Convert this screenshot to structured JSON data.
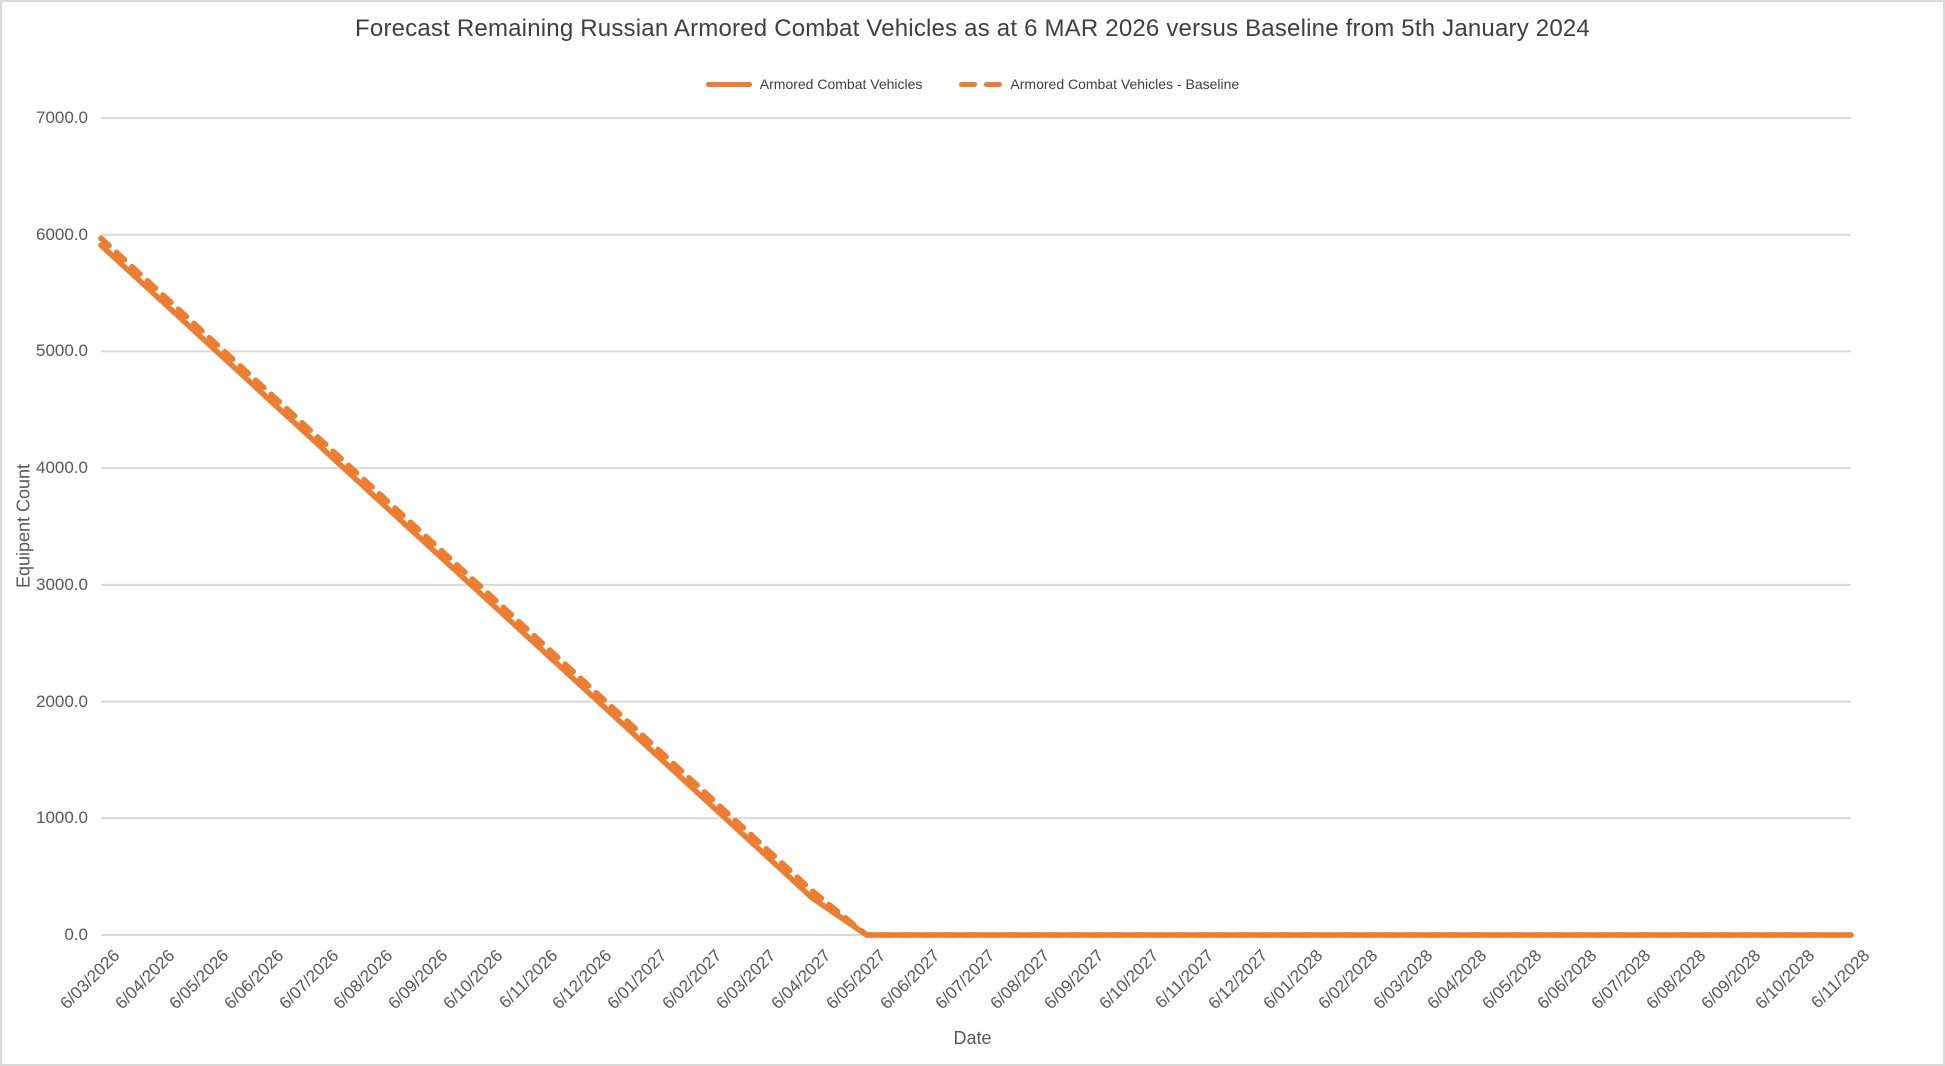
{
  "colors": {
    "accent_orange": "#ED7D31",
    "gridline": "#D9D9D9",
    "tick_text": "#595959",
    "title_text": "#404040",
    "border": "#D9D9D9",
    "background": "#FFFFFF"
  },
  "chart_data": {
    "type": "line",
    "title": "Forecast Remaining Russian Armored Combat Vehicles as at 6 MAR 2026 versus Baseline from 5th January 2024",
    "xlabel": "Date",
    "ylabel": "Equipent Count",
    "grid": true,
    "legend_position": "top-center",
    "ylim": [
      0,
      7000
    ],
    "y_ticks": [
      0,
      1000,
      2000,
      3000,
      4000,
      5000,
      6000,
      7000
    ],
    "y_tick_labels": [
      "0.0",
      "1000.0",
      "2000.0",
      "3000.0",
      "4000.0",
      "5000.0",
      "6000.0",
      "7000.0"
    ],
    "categories": [
      "6/03/2026",
      "6/04/2026",
      "6/05/2026",
      "6/06/2026",
      "6/07/2026",
      "6/08/2026",
      "6/09/2026",
      "6/10/2026",
      "6/11/2026",
      "6/12/2026",
      "6/01/2027",
      "6/02/2027",
      "6/03/2027",
      "6/04/2027",
      "6/05/2027",
      "6/06/2027",
      "6/07/2027",
      "6/08/2027",
      "6/09/2027",
      "6/10/2027",
      "6/11/2027",
      "6/12/2027",
      "6/01/2028",
      "6/02/2028",
      "6/03/2028",
      "6/04/2028",
      "6/05/2028",
      "6/06/2028",
      "6/07/2028",
      "6/08/2028",
      "6/09/2028",
      "6/10/2028",
      "6/11/2028"
    ],
    "series": [
      {
        "name": "Armored Combat Vehicles",
        "style": "solid",
        "color": "#ED7D31",
        "values": [
          5910,
          5480,
          5050,
          4620,
          4190,
          3760,
          3330,
          2900,
          2470,
          2040,
          1610,
          1180,
          750,
          320,
          0,
          0,
          0,
          0,
          0,
          0,
          0,
          0,
          0,
          0,
          0,
          0,
          0,
          0,
          0,
          0,
          0,
          0,
          0
        ]
      },
      {
        "name": "Armored Combat Vehicles - Baseline",
        "style": "dashed",
        "color": "#ED7D31",
        "values": [
          5970,
          5540,
          5110,
          4680,
          4250,
          3820,
          3390,
          2960,
          2530,
          2100,
          1670,
          1240,
          810,
          380,
          0,
          0,
          0,
          0,
          0,
          0,
          0,
          0,
          0,
          0,
          0,
          0,
          0,
          0,
          0,
          0,
          0,
          0,
          0
        ]
      }
    ]
  }
}
